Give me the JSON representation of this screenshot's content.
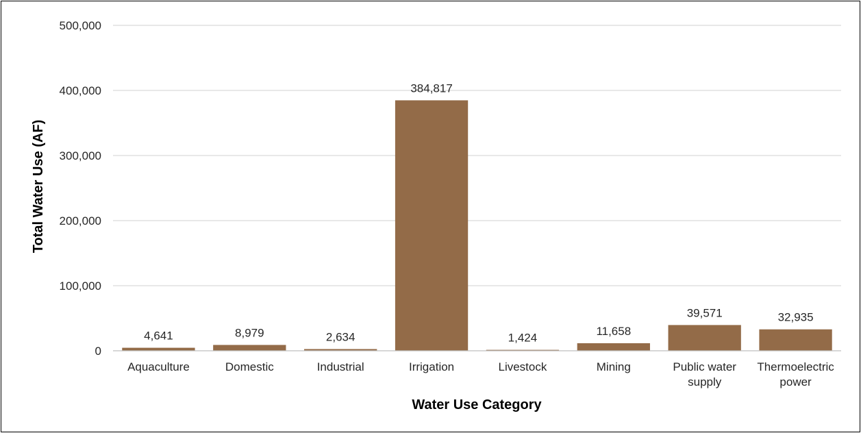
{
  "chart_data": {
    "type": "bar",
    "title": "",
    "xlabel": "Water Use Category",
    "ylabel": "Total Water Use (AF)",
    "ylim": [
      0,
      500000
    ],
    "y_ticks": [
      "0",
      "100,000",
      "200,000",
      "300,000",
      "400,000",
      "500,000"
    ],
    "y_tick_values": [
      0,
      100000,
      200000,
      300000,
      400000,
      500000
    ],
    "grid": true,
    "legend": "none",
    "bar_color": "#936b48",
    "categories": [
      [
        "Aquaculture"
      ],
      [
        "Domestic"
      ],
      [
        "Industrial"
      ],
      [
        "Irrigation"
      ],
      [
        "Livestock"
      ],
      [
        "Mining"
      ],
      [
        "Public water",
        "supply"
      ],
      [
        "Thermoelectric",
        "power"
      ]
    ],
    "values": [
      4641,
      8979,
      2634,
      384817,
      1424,
      11658,
      39571,
      32935
    ],
    "value_labels": [
      "4,641",
      "8,979",
      "2,634",
      "384,817",
      "1,424",
      "11,658",
      "39,571",
      "32,935"
    ]
  }
}
